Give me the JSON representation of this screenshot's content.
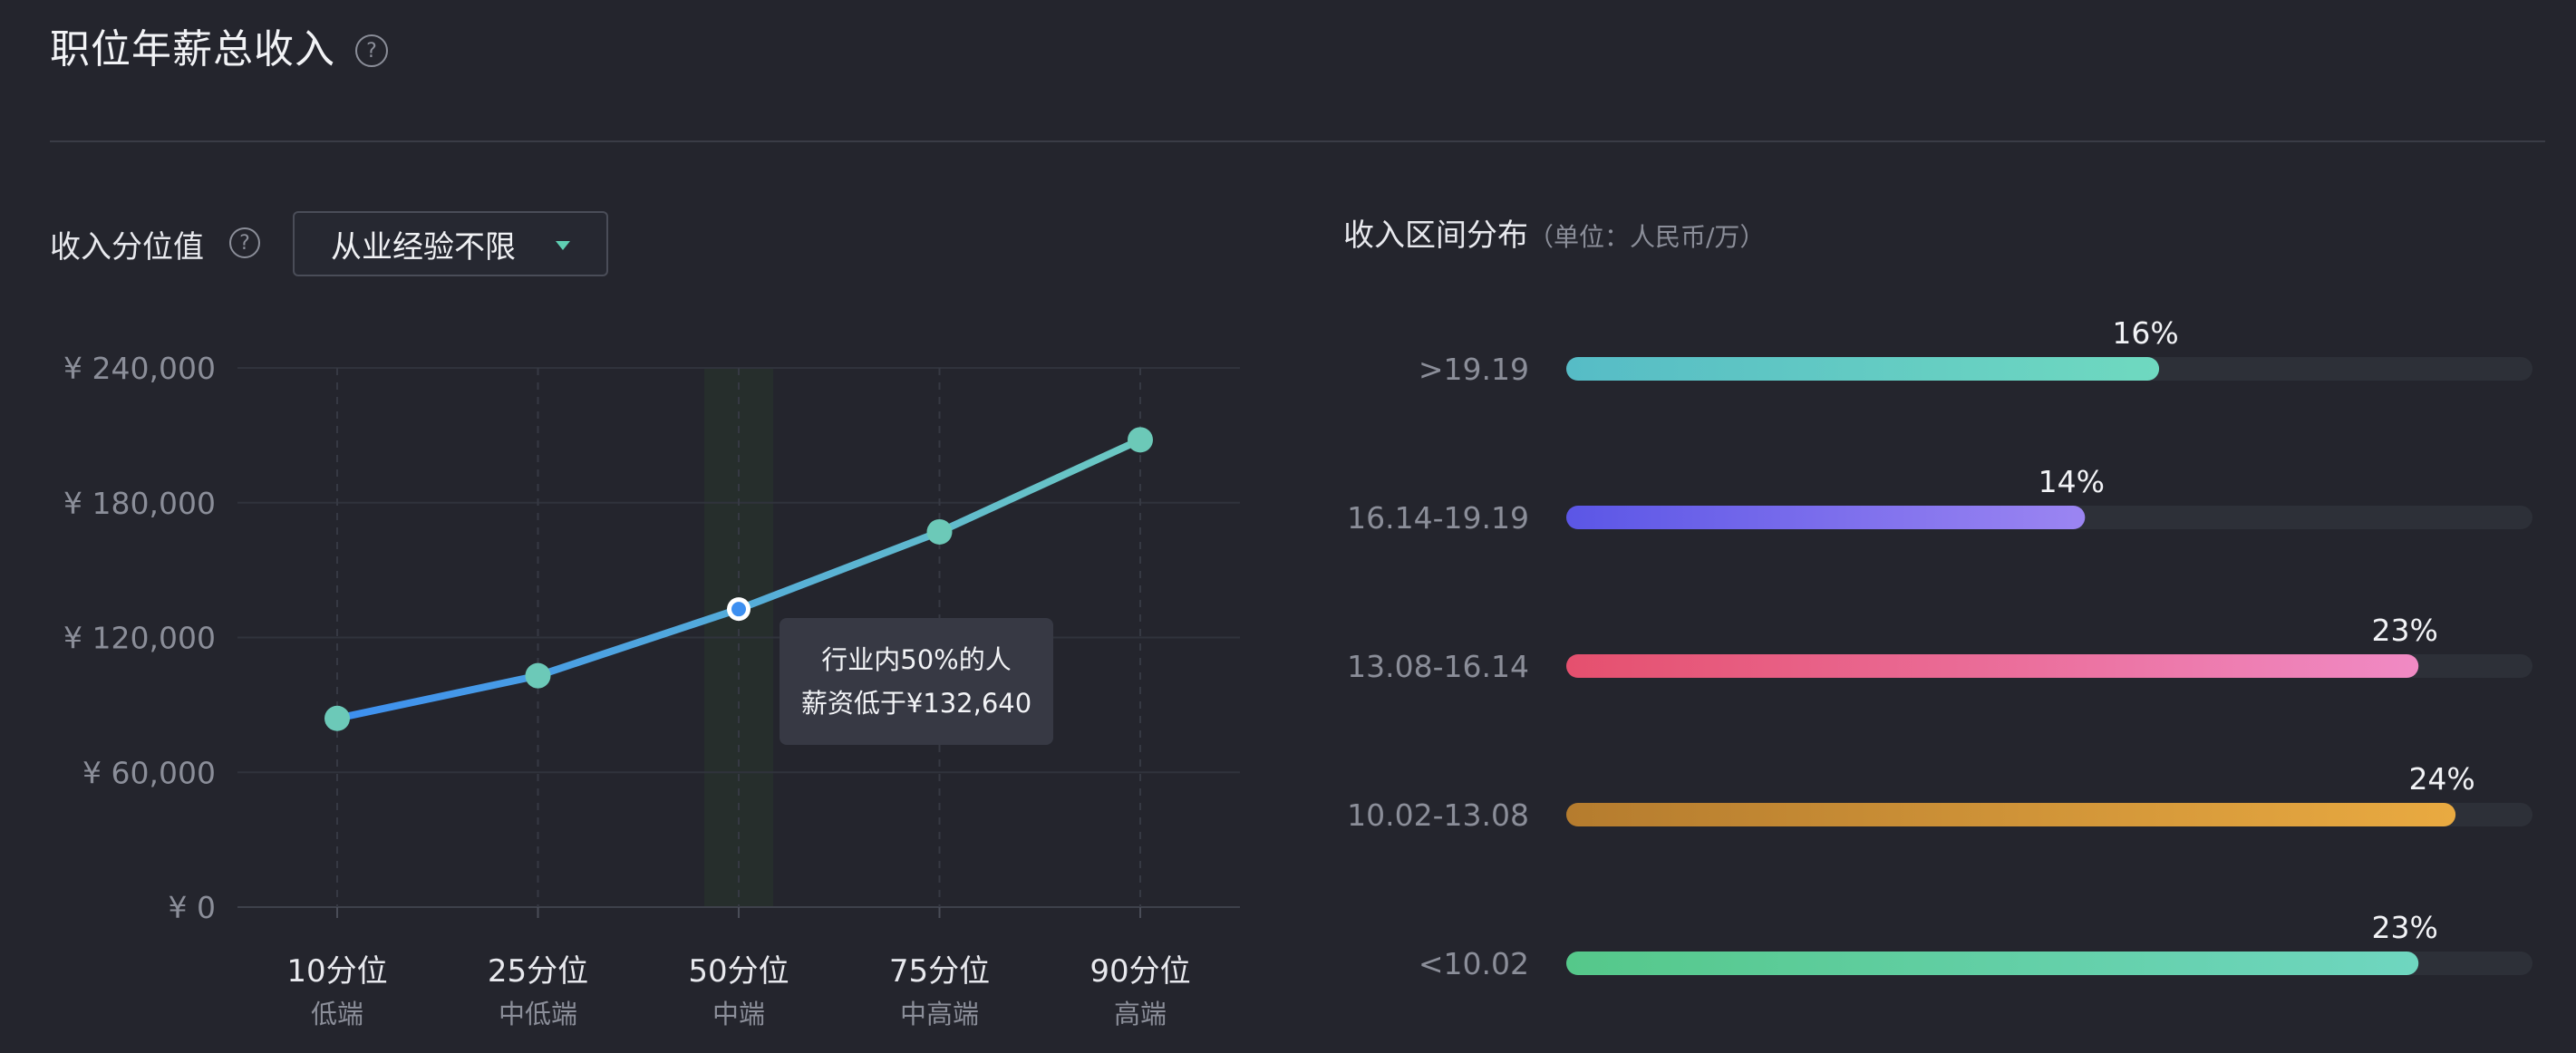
{
  "header": {
    "title": "职位年薪总收入",
    "help_glyph": "?"
  },
  "percentile_section": {
    "label": "收入分位值",
    "help_glyph": "?",
    "dropdown_value": "从业经验不限"
  },
  "distribution_section": {
    "label": "收入区间分布",
    "unit": "（单位：人民币/万）"
  },
  "tooltip": {
    "line1": "行业内50%的人",
    "line2": "薪资低于¥132,640"
  },
  "x_sublabels": [
    "低端",
    "中低端",
    "中端",
    "中高端",
    "高端"
  ],
  "chart_data": [
    {
      "type": "line",
      "categories": [
        "10分位",
        "25分位",
        "50分位",
        "75分位",
        "90分位"
      ],
      "values": [
        84000,
        103000,
        132640,
        167000,
        208000
      ],
      "ylim": [
        0,
        240000
      ],
      "yticks": [
        0,
        60000,
        120000,
        180000,
        240000
      ],
      "ytick_labels": [
        "¥ 0",
        "¥ 60,000",
        "¥ 120,000",
        "¥ 180,000",
        "¥ 240,000"
      ],
      "highlight_category": "50分位",
      "grid": true,
      "colors": {
        "line_start": "#3d8ff0",
        "line_end": "#6cc9c2",
        "point": "#6cc9b8",
        "highlight_band": "#262e2c"
      }
    },
    {
      "type": "bar",
      "orientation": "horizontal",
      "categories": [
        ">19.19",
        "16.14-19.19",
        "13.08-16.14",
        "10.02-13.08",
        "<10.02"
      ],
      "values": [
        16,
        14,
        23,
        24,
        23
      ],
      "value_labels": [
        "16%",
        "14%",
        "23%",
        "24%",
        "23%"
      ],
      "xlim": [
        0,
        25
      ],
      "gradients": [
        [
          "#56bcc6",
          "#6fd9c0"
        ],
        [
          "#5b56e6",
          "#9b85f2"
        ],
        [
          "#e5506e",
          "#f08ac4"
        ],
        [
          "#b57c2e",
          "#e9aa41"
        ],
        [
          "#55c88a",
          "#6fd6c0"
        ]
      ],
      "track_color": "#2d3038"
    }
  ]
}
